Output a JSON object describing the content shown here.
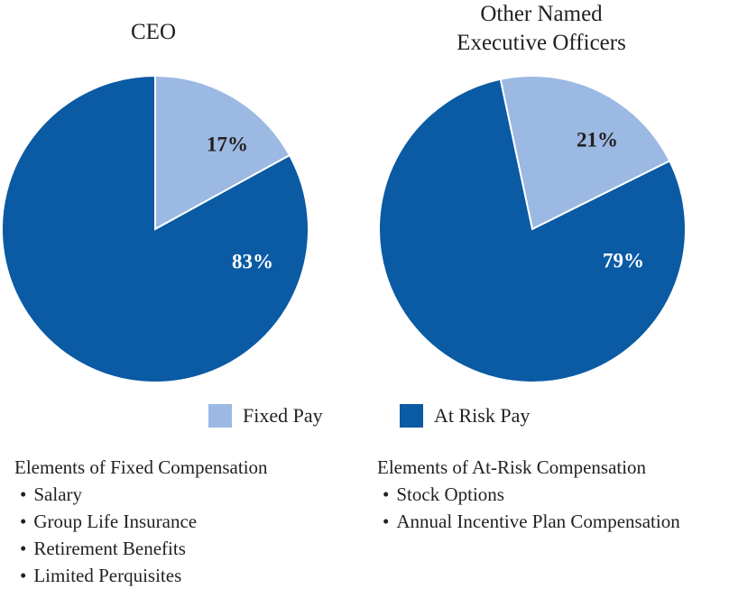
{
  "chart_data": [
    {
      "type": "pie",
      "title": "CEO",
      "slices": [
        {
          "label": "Fixed Pay",
          "value": 17,
          "display": "17%"
        },
        {
          "label": "At Risk Pay",
          "value": 83,
          "display": "83%"
        }
      ]
    },
    {
      "type": "pie",
      "title_lines": [
        "Other Named",
        "Executive Officers"
      ],
      "slices": [
        {
          "label": "Fixed Pay",
          "value": 21,
          "display": "21%"
        },
        {
          "label": "At Risk Pay",
          "value": 79,
          "display": "79%"
        }
      ]
    }
  ],
  "colors": {
    "fixed": "#9bb9e2",
    "at_risk": "#0a5aa4",
    "fixed_label": "#231f20",
    "risk_label": "#ffffff"
  },
  "legend": [
    {
      "label": "Fixed Pay"
    },
    {
      "label": "At Risk Pay"
    }
  ],
  "fixed_elements": {
    "heading": "Elements of Fixed Compensation",
    "items": [
      "Salary",
      "Group Life Insurance",
      "Retirement Benefits",
      "Limited Perquisites"
    ]
  },
  "risk_elements": {
    "heading": "Elements of At-Risk Compensation",
    "items": [
      "Stock Options",
      "Annual Incentive Plan Compensation"
    ]
  }
}
